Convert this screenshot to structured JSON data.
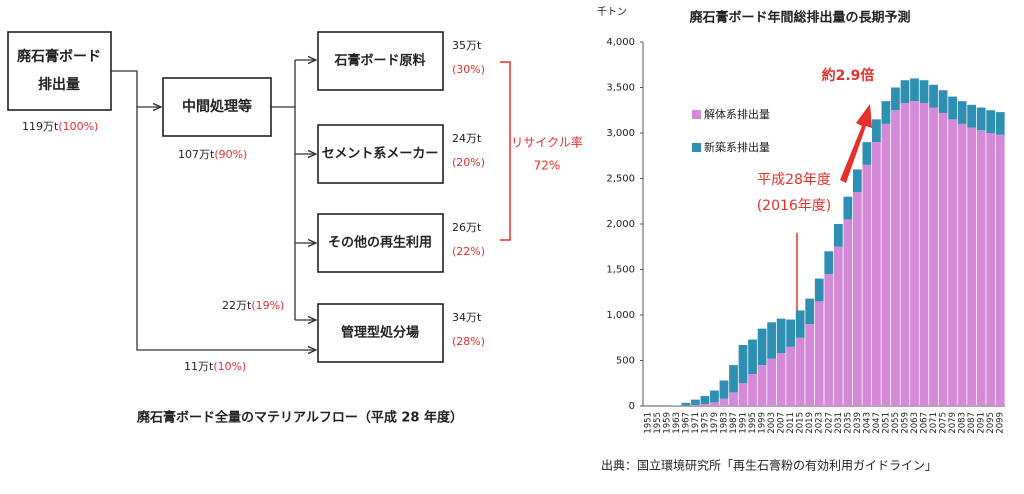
{
  "diagram": {
    "title": "廃石膏ボード全量のマテリアルフロー（平成 28 年度）",
    "source": {
      "lines": [
        "廃石膏ボード",
        "排出量"
      ],
      "amount": "119万t",
      "share": "(100%)"
    },
    "middle": {
      "label": "中間処理等",
      "amount": "107万t",
      "share": "(90%)"
    },
    "outputs": [
      {
        "label": "石膏ボード原料",
        "amount": "35万t",
        "share": "(30%)"
      },
      {
        "label": "セメント系メーカー",
        "amount": "24万t",
        "share": "(20%)"
      },
      {
        "label": "その他の再生利用",
        "amount": "26万t",
        "share": "(22%)"
      },
      {
        "label": "管理型処分場",
        "amount": "34万t",
        "share": "(28%)"
      }
    ],
    "flows": [
      {
        "amount": "22万t",
        "share": "(19%)"
      },
      {
        "amount": "11万t",
        "share": "(10%)"
      }
    ],
    "recycle": {
      "label": "リサイクル率",
      "value": "72%"
    }
  },
  "chart_data": {
    "type": "stacked_bar",
    "title": "廃石膏ボード年間総排出量の長期予測",
    "y_unit": "千トン",
    "categories": [
      "1951",
      "1955",
      "1959",
      "1963",
      "1967",
      "1971",
      "1975",
      "1979",
      "1983",
      "1987",
      "1991",
      "1995",
      "1999",
      "2003",
      "2007",
      "2011",
      "2015",
      "2019",
      "2023",
      "2027",
      "2031",
      "2035",
      "2039",
      "2043",
      "2047",
      "2051",
      "2055",
      "2059",
      "2063",
      "2067",
      "2071",
      "2075",
      "2079",
      "2083",
      "2087",
      "2091",
      "2095",
      "2099"
    ],
    "series": [
      {
        "name": "解体系排出量",
        "color": "#d58ad8",
        "values": [
          0,
          0,
          0,
          0,
          5,
          10,
          20,
          40,
          80,
          150,
          250,
          350,
          450,
          520,
          580,
          650,
          750,
          900,
          1150,
          1450,
          1750,
          2050,
          2350,
          2650,
          2900,
          3100,
          3250,
          3330,
          3350,
          3330,
          3280,
          3220,
          3150,
          3100,
          3060,
          3030,
          3000,
          2980
        ]
      },
      {
        "name": "新築系排出量",
        "color": "#2f8fb3",
        "values": [
          0,
          0,
          0,
          5,
          30,
          60,
          90,
          130,
          200,
          300,
          420,
          380,
          400,
          400,
          380,
          300,
          300,
          280,
          250,
          250,
          250,
          250,
          250,
          250,
          250,
          250,
          250,
          250,
          250,
          250,
          250,
          250,
          250,
          250,
          250,
          250,
          250,
          250
        ]
      }
    ],
    "ylim": [
      0,
      4000
    ],
    "yticks": [
      0,
      500,
      {
        "value": 1000,
        "label": "1,000"
      },
      {
        "value": 1500,
        "label": "1,500"
      },
      {
        "value": 2000,
        "label": "2,000"
      },
      {
        "value": 2500,
        "label": "2,500"
      },
      {
        "value": 3000,
        "label": "3,000"
      },
      {
        "value": 3500,
        "label": "3,500"
      },
      {
        "value": 4000,
        "label": "4,000"
      }
    ],
    "annotations": [
      "約2.9倍",
      "平成28年度",
      "(2016年度)"
    ],
    "source": "出典：国立環境研究所「再生石膏粉の有効利用ガイドライン」"
  }
}
